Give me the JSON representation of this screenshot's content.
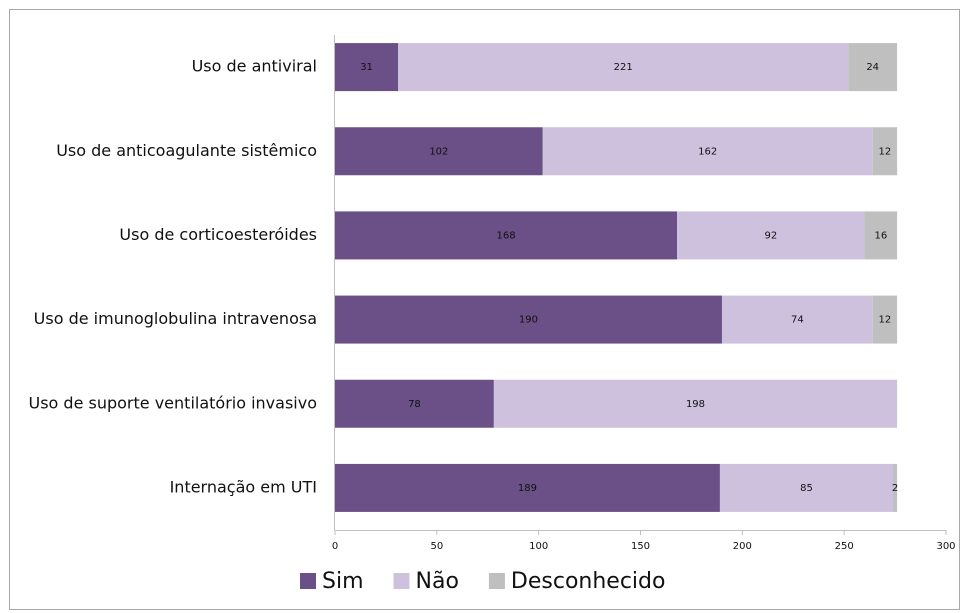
{
  "chart_data": {
    "type": "stacked-bar-horizontal",
    "categories": [
      "Uso de antiviral",
      "Uso de anticoagulante sistêmico",
      "Uso de corticoesteróides",
      "Uso de imunoglobulina intravenosa",
      "Uso de suporte ventilatório invasivo",
      "Internação em UTI"
    ],
    "series": [
      {
        "name": "Sim",
        "color": "#6a5087",
        "values": [
          31,
          102,
          168,
          190,
          78,
          189
        ]
      },
      {
        "name": "Não",
        "color": "#cdc1de",
        "values": [
          221,
          162,
          92,
          74,
          198,
          85
        ]
      },
      {
        "name": "Desconhecido",
        "color": "#bfbfbf",
        "values": [
          24,
          12,
          16,
          12,
          null,
          2
        ]
      }
    ],
    "xlim": [
      0,
      300
    ],
    "xticks": [
      0,
      50,
      100,
      150,
      200,
      250,
      300
    ],
    "legend": "bottom"
  }
}
